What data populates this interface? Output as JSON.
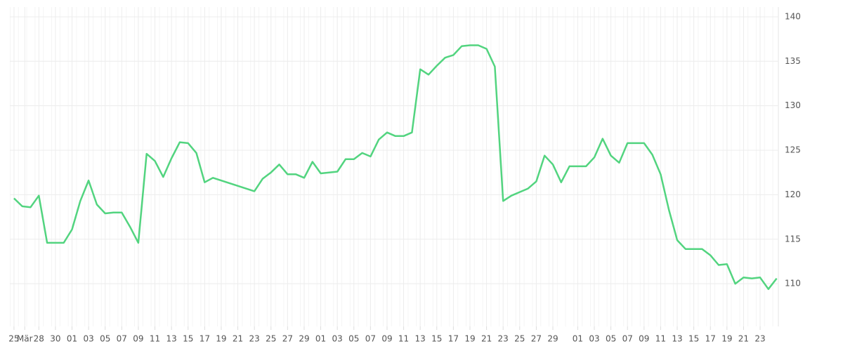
{
  "chart_data": {
    "type": "line",
    "color": "#52d47f",
    "x": [
      0,
      1,
      2,
      3,
      4,
      5,
      6,
      7,
      8,
      9,
      10,
      11,
      12,
      13,
      14,
      15,
      16,
      17,
      18,
      19,
      20,
      21,
      22,
      23,
      24,
      29,
      30,
      31,
      32,
      33,
      34,
      35,
      36,
      37,
      38,
      39,
      40,
      41,
      42,
      43,
      44,
      45,
      46,
      47,
      48,
      49,
      50,
      51,
      52,
      53,
      54,
      55,
      56,
      57,
      58,
      59,
      60,
      61,
      62,
      63,
      64,
      65,
      66,
      67,
      68,
      69,
      70,
      71,
      72,
      73,
      74,
      75,
      76,
      77,
      78,
      79,
      80,
      81,
      82,
      83,
      84,
      85,
      86,
      87,
      88,
      89,
      90,
      91,
      92
    ],
    "values": [
      119.6,
      118.7,
      118.6,
      119.9,
      114.6,
      114.6,
      114.6,
      116.1,
      119.3,
      121.6,
      118.9,
      117.9,
      118.0,
      118.0,
      116.4,
      114.6,
      124.6,
      123.8,
      122.0,
      124.1,
      125.9,
      125.8,
      124.7,
      121.4,
      121.9,
      120.4,
      121.8,
      122.5,
      123.4,
      122.3,
      122.3,
      121.9,
      123.7,
      122.4,
      122.5,
      122.6,
      124.0,
      124.0,
      124.7,
      124.3,
      126.2,
      127.0,
      126.6,
      126.6,
      127.0,
      134.1,
      133.5,
      134.5,
      135.4,
      135.7,
      136.7,
      136.8,
      136.8,
      136.4,
      134.4,
      119.3,
      119.9,
      120.3,
      120.7,
      121.5,
      124.4,
      123.4,
      121.4,
      123.2,
      123.2,
      123.2,
      124.2,
      126.3,
      124.4,
      123.6,
      125.8,
      125.8,
      125.8,
      124.5,
      122.3,
      118.3,
      114.9,
      113.9,
      113.9,
      113.9,
      113.2,
      112.1,
      112.2,
      110.0,
      110.7,
      110.6,
      110.7,
      109.4,
      110.6
    ],
    "xlim": [
      -0.5,
      92.2
    ],
    "xticks": [
      {
        "value": 0,
        "label": "25"
      },
      {
        "value": 1.3,
        "label": "Mär"
      },
      {
        "value": 3,
        "label": "28"
      },
      {
        "value": 5,
        "label": "30"
      },
      {
        "value": 7,
        "label": "01"
      },
      {
        "value": 9,
        "label": "03"
      },
      {
        "value": 11,
        "label": "05"
      },
      {
        "value": 13,
        "label": "07"
      },
      {
        "value": 15,
        "label": "09"
      },
      {
        "value": 17,
        "label": "11"
      },
      {
        "value": 19,
        "label": "13"
      },
      {
        "value": 21,
        "label": "15"
      },
      {
        "value": 23,
        "label": "17"
      },
      {
        "value": 25,
        "label": "19"
      },
      {
        "value": 27,
        "label": "21"
      },
      {
        "value": 29,
        "label": "23"
      },
      {
        "value": 31,
        "label": "25"
      },
      {
        "value": 33,
        "label": "27"
      },
      {
        "value": 35,
        "label": "29"
      },
      {
        "value": 37,
        "label": "01"
      },
      {
        "value": 39,
        "label": "03"
      },
      {
        "value": 41,
        "label": "05"
      },
      {
        "value": 43,
        "label": "07"
      },
      {
        "value": 45,
        "label": "09"
      },
      {
        "value": 47,
        "label": "11"
      },
      {
        "value": 49,
        "label": "13"
      },
      {
        "value": 51,
        "label": "15"
      },
      {
        "value": 53,
        "label": "17"
      },
      {
        "value": 55,
        "label": "19"
      },
      {
        "value": 57,
        "label": "21"
      },
      {
        "value": 59,
        "label": "23"
      },
      {
        "value": 61,
        "label": "25"
      },
      {
        "value": 63,
        "label": "27"
      },
      {
        "value": 65,
        "label": "29"
      },
      {
        "value": 68,
        "label": "01"
      },
      {
        "value": 70,
        "label": "03"
      },
      {
        "value": 72,
        "label": "05"
      },
      {
        "value": 74,
        "label": "07"
      },
      {
        "value": 76,
        "label": "09"
      },
      {
        "value": 78,
        "label": "11"
      },
      {
        "value": 80,
        "label": "13"
      },
      {
        "value": 82,
        "label": "15"
      },
      {
        "value": 84,
        "label": "17"
      },
      {
        "value": 86,
        "label": "19"
      },
      {
        "value": 88,
        "label": "21"
      },
      {
        "value": 90,
        "label": "23"
      }
    ],
    "ylim": [
      105.2,
      141.1
    ],
    "yticks": [
      110,
      115,
      120,
      125,
      130,
      135,
      140
    ],
    "grid": true
  }
}
